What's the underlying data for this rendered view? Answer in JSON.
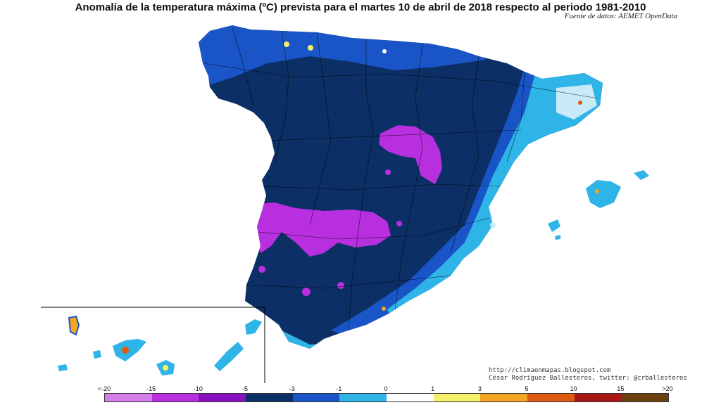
{
  "title": "Anomalía de la temperatura máxima (ºC) prevista para el martes 10 de abril de 2018 respecto al periodo 1981-2010",
  "subtitle": "Fuente de datos: AEMET OpenData",
  "credits": {
    "line1": "http://climaenmapas.blogspot.com",
    "line2": "César Rodríguez Ballesteros, twitter: @crballesteros"
  },
  "legend": {
    "labels": [
      "<-20",
      "-15",
      "-10",
      "-5",
      "-3",
      "-1",
      "0",
      "1",
      "3",
      "5",
      "10",
      "15",
      ">20"
    ],
    "colors": [
      "#d47ce8",
      "#b82fe0",
      "#8a0fc0",
      "#0c2f66",
      "#1a55c8",
      "#2fb4e8",
      "#c8eaf8",
      "#ffffff",
      "#f4f06a",
      "#f4a623",
      "#e05a12",
      "#a81616",
      "#6b3f10"
    ]
  },
  "colors": {
    "deep_navy": "#0c2f66",
    "blue": "#1a55c8",
    "cyan": "#2fb4e8",
    "light_cyan": "#c8eaf8",
    "magenta": "#b82fe0"
  }
}
